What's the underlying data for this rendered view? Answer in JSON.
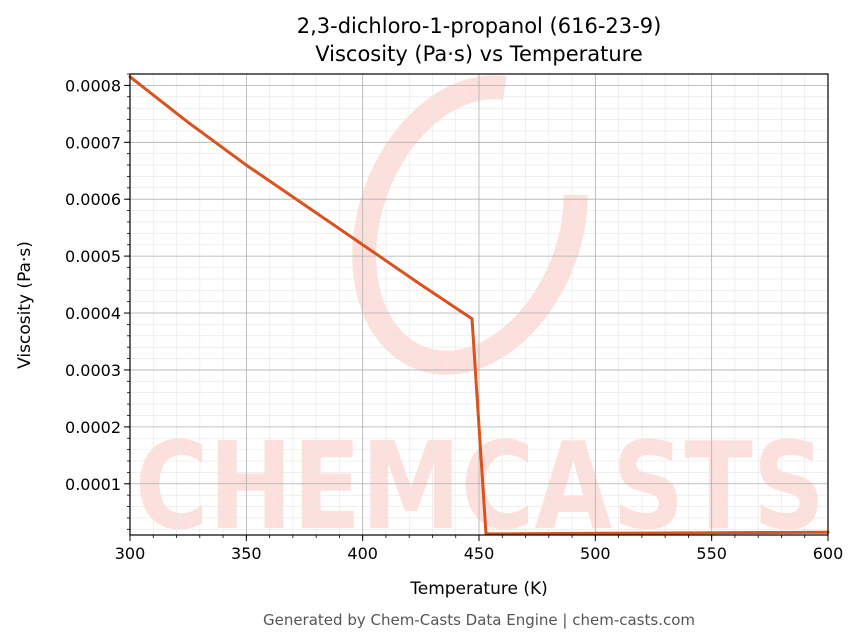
{
  "chart_data": {
    "type": "line",
    "title": "2,3-dichloro-1-propanol (616-23-9)",
    "subtitle": "Viscosity (Pa·s) vs Temperature",
    "xlabel": "Temperature (K)",
    "ylabel": "Viscosity (Pa·s)",
    "xlim": [
      300,
      600
    ],
    "ylim": [
      1e-05,
      0.00082
    ],
    "x_ticks": [
      "300",
      "350",
      "400",
      "450",
      "500",
      "550",
      "600"
    ],
    "y_ticks": [
      "0.0001",
      "0.0002",
      "0.0003",
      "0.0004",
      "0.0005",
      "0.0006",
      "0.0007",
      "0.0008"
    ],
    "grid": true,
    "line_color": "#d9531e",
    "series": [
      {
        "x": [
          300,
          325,
          350,
          375,
          400,
          425,
          447,
          453,
          460,
          500,
          550,
          600
        ],
        "y": [
          0.000815,
          0.000735,
          0.00066,
          0.00059,
          0.00052,
          0.00045,
          0.00039,
          1.2e-05,
          1.2e-05,
          1.3e-05,
          1.4e-05,
          1.5e-05
        ]
      }
    ]
  },
  "watermark": {
    "text": "CHEMCASTS",
    "color": "#fde0dc"
  },
  "footer": "Generated by Chem-Casts Data Engine | chem-casts.com"
}
